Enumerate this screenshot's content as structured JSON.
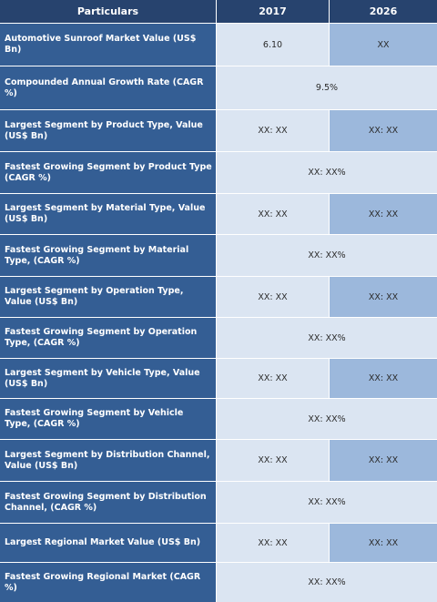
{
  "header": {
    "particulars": "Particulars",
    "year1": "2017",
    "year2": "2026"
  },
  "rows": [
    {
      "label": "Automotive Sunroof Market Value (US$ Bn)",
      "v2017": "6.10",
      "v2026": "XX"
    },
    {
      "label": "Compounded Annual Growth Rate (CAGR %)",
      "span": "9.5%"
    },
    {
      "label": "Largest Segment by Product Type, Value (US$ Bn)",
      "v2017": "XX: XX",
      "v2026": "XX:  XX"
    },
    {
      "label": "Fastest Growing Segment by Product Type (CAGR %)",
      "span": "XX:  XX%"
    },
    {
      "label": "Largest Segment by Material Type, Value (US$ Bn)",
      "v2017": "XX: XX",
      "v2026": "XX:  XX"
    },
    {
      "label": "Fastest Growing Segment by Material Type, (CAGR %)",
      "span": "XX:  XX%"
    },
    {
      "label": "Largest Segment by Operation Type, Value (US$ Bn)",
      "v2017": "XX: XX",
      "v2026": "XX:  XX"
    },
    {
      "label": "Fastest Growing Segment by Operation Type, (CAGR %)",
      "span": "XX:  XX%"
    },
    {
      "label": "Largest Segment by Vehicle Type, Value (US$ Bn)",
      "v2017": "XX: XX",
      "v2026": "XX:  XX"
    },
    {
      "label": "Fastest Growing Segment by Vehicle Type, (CAGR %)",
      "span": "XX:  XX%"
    },
    {
      "label": "Largest Segment by Distribution Channel, Value (US$ Bn)",
      "v2017": "XX: XX",
      "v2026": "XX:  XX"
    },
    {
      "label": "Fastest Growing Segment by Distribution Channel, (CAGR %)",
      "span": "XX:  XX%"
    },
    {
      "label": "Largest Regional Market Value (US$ Bn)",
      "v2017": "XX: XX",
      "v2026": "XX: XX"
    },
    {
      "label": "Fastest Growing Regional Market (CAGR %)",
      "span": "XX: XX%"
    }
  ]
}
